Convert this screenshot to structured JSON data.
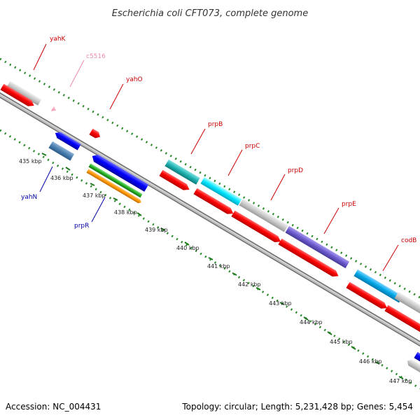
{
  "title": "Escherichia coli CFT073, complete genome",
  "footer": {
    "accession": "Accession: NC_004431",
    "summary": "Topology: circular; Length: 5,231,428 bp; Genes: 5,454"
  },
  "colors": {
    "label_red": "#cc0000",
    "label_pink": "#f08aa6",
    "label_blue": "#0000aa",
    "backbone": "#9a9a9a",
    "tick": "#2a8a2a"
  },
  "ticks": [
    "435 kbp",
    "436 kbp",
    "437 kbp",
    "438 kbp",
    "439 kbp",
    "440 kbp",
    "441 kbp",
    "442 kbp",
    "443 kbp",
    "444 kbp",
    "445 kbp",
    "446 kbp",
    "447 kbp"
  ],
  "gene_labels": {
    "yahK": "yahK",
    "c5516": "c5516",
    "yahO": "yahO",
    "prpB": "prpB",
    "prpC": "prpC",
    "prpD": "prpD",
    "prpE": "prpE",
    "codB": "codB",
    "yahN": "yahN",
    "prpR": "prpR"
  }
}
